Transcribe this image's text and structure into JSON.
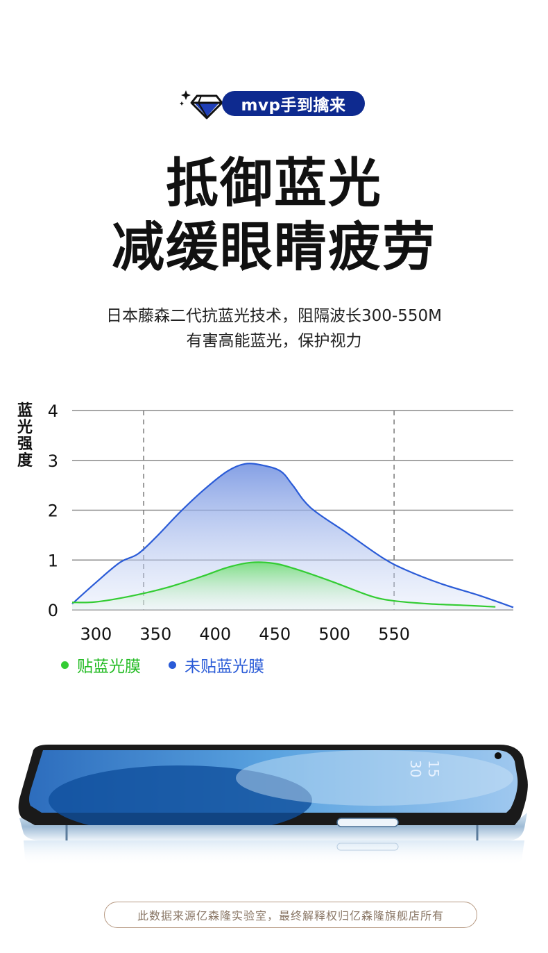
{
  "badge": {
    "text": "mvp手到擒来",
    "icon": "diamond-sparkle-icon"
  },
  "headline": {
    "line1": "抵御蓝光",
    "line2": "减缓眼睛疲劳"
  },
  "subtitle": {
    "line1": "日本藤森二代抗蓝光技术，阻隔波长300-550M",
    "line2": "有害高能蓝光，保护视力"
  },
  "chart_data": {
    "type": "area",
    "ylabel": "蓝光强度",
    "xlabel": "",
    "title": "",
    "xlim": [
      280,
      650
    ],
    "ylim": [
      0,
      4
    ],
    "x_ticks": [
      300,
      350,
      400,
      450,
      500,
      550
    ],
    "y_ticks": [
      0,
      1,
      2,
      3,
      4
    ],
    "reference_lines_x": [
      340,
      550
    ],
    "grid": "horizontal",
    "legend_position": "bottom-left",
    "series": [
      {
        "name": "未贴蓝光膜",
        "color": "#2a5bd7",
        "x": [
          280,
          300,
          320,
          335,
          350,
          370,
          390,
          410,
          425,
          440,
          455,
          465,
          480,
          510,
          540,
          560,
          590,
          620,
          650
        ],
        "y": [
          0.12,
          0.55,
          0.95,
          1.12,
          1.45,
          1.95,
          2.4,
          2.78,
          2.93,
          2.9,
          2.78,
          2.5,
          2.05,
          1.55,
          1.05,
          0.8,
          0.52,
          0.3,
          0.05
        ]
      },
      {
        "name": "贴蓝光膜",
        "color": "#33cc33",
        "x": [
          280,
          300,
          330,
          360,
          390,
          410,
          430,
          450,
          470,
          500,
          530,
          550,
          580,
          610,
          635
        ],
        "y": [
          0.15,
          0.16,
          0.28,
          0.45,
          0.68,
          0.85,
          0.95,
          0.93,
          0.8,
          0.55,
          0.28,
          0.18,
          0.12,
          0.09,
          0.06
        ]
      }
    ]
  },
  "legend": [
    {
      "label": "贴蓝光膜",
      "color": "#33cc33"
    },
    {
      "label": "未贴蓝光膜",
      "color": "#2a5bd7"
    }
  ],
  "phone_screen": {
    "time_hour": "15",
    "time_minute": "30"
  },
  "footnote": "此数据来源亿森隆实验室，最终解释权归亿森隆旗舰店所有"
}
